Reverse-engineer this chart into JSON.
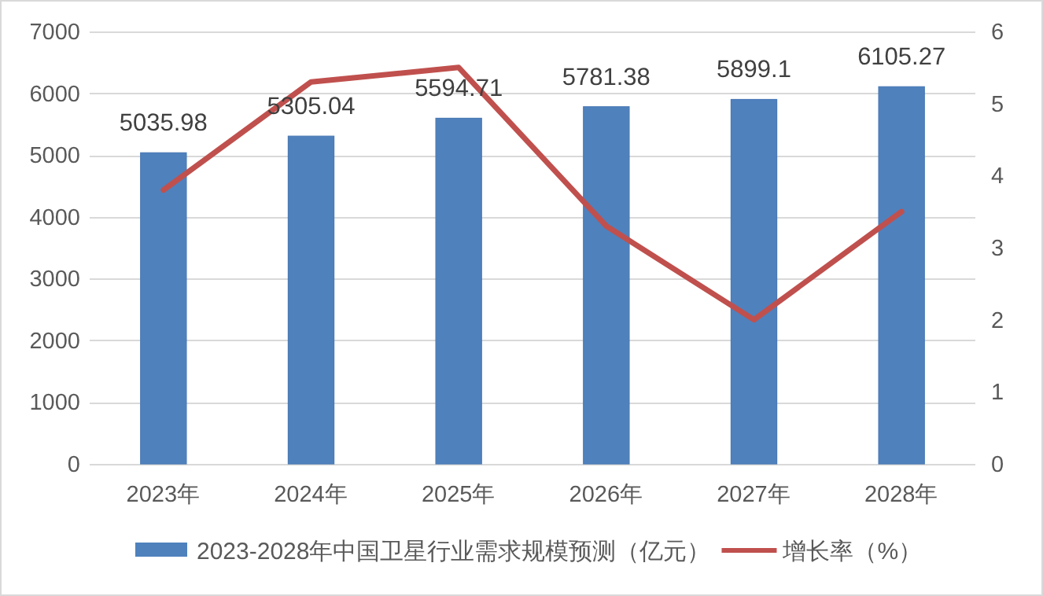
{
  "chart_data": {
    "type": "bar",
    "categories": [
      "2023年",
      "2024年",
      "2025年",
      "2026年",
      "2027年",
      "2028年"
    ],
    "series": [
      {
        "name": "2023-2028年中国卫星行业需求规模预测（亿元）",
        "color": "#4f81bd",
        "values": [
          5035.98,
          5305.04,
          5594.71,
          5781.38,
          5899.1,
          6105.27
        ],
        "value_labels": [
          "5035.98",
          "5305.04",
          "5594.71",
          "5781.38",
          "5899.1",
          "6105.27"
        ]
      },
      {
        "name": "增长率（%）",
        "type": "line",
        "axis": "y2",
        "color": "#c0504d",
        "values": [
          3.8,
          5.3,
          5.5,
          3.3,
          2.0,
          3.5
        ]
      }
    ],
    "ylim": [
      0,
      7000
    ],
    "yticks": [
      0,
      1000,
      2000,
      3000,
      4000,
      5000,
      6000,
      7000
    ],
    "y2lim": [
      0,
      6
    ],
    "y2ticks": [
      0,
      1,
      2,
      3,
      4,
      5,
      6
    ],
    "grid": "y",
    "legend": "bottom"
  }
}
